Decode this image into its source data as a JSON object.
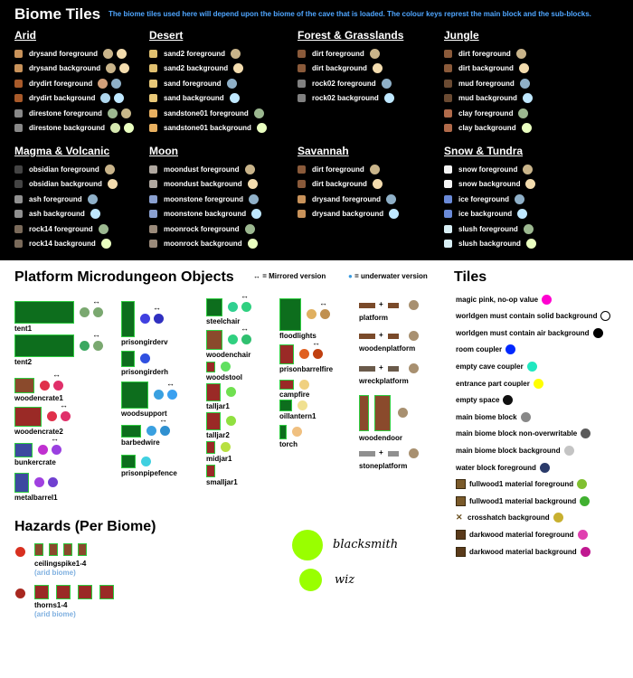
{
  "header": {
    "title": "Biome Tiles",
    "description": "The biome tiles used here will depend upon the biome of the cave that is loaded. The colour keys represt the main block and the sub-blocks."
  },
  "biomes": [
    {
      "name": "Arid",
      "rows": [
        {
          "label": "drysand foreground",
          "icon": "#c8925a",
          "dots": [
            "#c9b48a",
            "#f3dcae"
          ]
        },
        {
          "label": "drysand background",
          "icon": "#c8925a",
          "dots": [
            "#c9b48a",
            "#f3dcae"
          ]
        },
        {
          "label": "drydirt foreground",
          "icon": "#a85a2a",
          "dots": [
            "#d2a07a",
            "#8fb0c8"
          ]
        },
        {
          "label": "drydirt background",
          "icon": "#a85a2a",
          "dots": [
            "#aed6ee",
            "#bfe8ff"
          ]
        },
        {
          "label": "direstone foreground",
          "icon": "#888888",
          "dots": [
            "#9cb890",
            "#c8b88a"
          ]
        },
        {
          "label": "direstone background",
          "icon": "#888888",
          "dots": [
            "#d6e8b0",
            "#eaffc0"
          ]
        }
      ]
    },
    {
      "name": "Desert",
      "rows": [
        {
          "label": "sand2 foreground",
          "icon": "#e0c070",
          "dots": [
            "#c9b48a"
          ]
        },
        {
          "label": "sand2 background",
          "icon": "#e0c070",
          "dots": [
            "#f3dcae"
          ]
        },
        {
          "label": "sand foreground",
          "icon": "#e8c878",
          "dots": [
            "#8fb0c8"
          ]
        },
        {
          "label": "sand background",
          "icon": "#e8c878",
          "dots": [
            "#bfe8ff"
          ]
        },
        {
          "label": "sandstone01 foreground",
          "icon": "#e8b060",
          "dots": [
            "#9cb890"
          ]
        },
        {
          "label": "sandstone01 background",
          "icon": "#e8b060",
          "dots": [
            "#eaffc0"
          ]
        }
      ]
    },
    {
      "name": "Forest & Grasslands",
      "rows": [
        {
          "label": "dirt foreground",
          "icon": "#8a5a3a",
          "dots": [
            "#c9b48a"
          ]
        },
        {
          "label": "dirt background",
          "icon": "#8a5a3a",
          "dots": [
            "#f3dcae"
          ]
        },
        {
          "label": "rock02 foreground",
          "icon": "#808080",
          "dots": [
            "#8fb0c8"
          ]
        },
        {
          "label": "rock02 background",
          "icon": "#808080",
          "dots": [
            "#bfe8ff"
          ]
        }
      ]
    },
    {
      "name": "Jungle",
      "rows": [
        {
          "label": "dirt foreground",
          "icon": "#8a5a3a",
          "dots": [
            "#c9b48a"
          ]
        },
        {
          "label": "dirt background",
          "icon": "#8a5a3a",
          "dots": [
            "#f3dcae"
          ]
        },
        {
          "label": "mud foreground",
          "icon": "#6a4a32",
          "dots": [
            "#8fb0c8"
          ]
        },
        {
          "label": "mud background",
          "icon": "#6a4a32",
          "dots": [
            "#bfe8ff"
          ]
        },
        {
          "label": "clay foreground",
          "icon": "#b06a4a",
          "dots": [
            "#9cb890"
          ]
        },
        {
          "label": "clay background",
          "icon": "#b06a4a",
          "dots": [
            "#eaffc0"
          ]
        }
      ]
    },
    {
      "name": "Magma & Volcanic",
      "rows": [
        {
          "label": "obsidian foreground",
          "icon": "#444444",
          "dots": [
            "#c9b48a"
          ]
        },
        {
          "label": "obsidian background",
          "icon": "#444444",
          "dots": [
            "#f3dcae"
          ]
        },
        {
          "label": "ash foreground",
          "icon": "#909090",
          "dots": [
            "#8fb0c8"
          ]
        },
        {
          "label": "ash background",
          "icon": "#909090",
          "dots": [
            "#bfe8ff"
          ]
        },
        {
          "label": "rock14 foreground",
          "icon": "#7a6a5a",
          "dots": [
            "#9cb890"
          ]
        },
        {
          "label": "rock14 background",
          "icon": "#7a6a5a",
          "dots": [
            "#eaffc0"
          ]
        }
      ]
    },
    {
      "name": "Moon",
      "rows": [
        {
          "label": "moondust foreground",
          "icon": "#b0a8a0",
          "dots": [
            "#c9b48a"
          ]
        },
        {
          "label": "moondust background",
          "icon": "#b0a8a0",
          "dots": [
            "#f3dcae"
          ]
        },
        {
          "label": "moonstone foreground",
          "icon": "#8aa0d0",
          "dots": [
            "#8fb0c8"
          ]
        },
        {
          "label": "moonstone background",
          "icon": "#8aa0d0",
          "dots": [
            "#bfe8ff"
          ]
        },
        {
          "label": "moonrock foreground",
          "icon": "#9a8a7a",
          "dots": [
            "#9cb890"
          ]
        },
        {
          "label": "moonrock background",
          "icon": "#9a8a7a",
          "dots": [
            "#eaffc0"
          ]
        }
      ]
    },
    {
      "name": "Savannah",
      "rows": [
        {
          "label": "dirt foreground",
          "icon": "#8a5a3a",
          "dots": [
            "#c9b48a"
          ]
        },
        {
          "label": "dirt background",
          "icon": "#8a5a3a",
          "dots": [
            "#f3dcae"
          ]
        },
        {
          "label": "drysand foreground",
          "icon": "#c8925a",
          "dots": [
            "#8fb0c8"
          ]
        },
        {
          "label": "drysand background",
          "icon": "#c8925a",
          "dots": [
            "#bfe8ff"
          ]
        }
      ]
    },
    {
      "name": "Snow & Tundra",
      "rows": [
        {
          "label": "snow foreground",
          "icon": "#f4f4f4",
          "dots": [
            "#c9b48a"
          ]
        },
        {
          "label": "snow background",
          "icon": "#f4f4f4",
          "dots": [
            "#f3dcae"
          ]
        },
        {
          "label": "ice foreground",
          "icon": "#6a8ad8",
          "dots": [
            "#8fb0c8"
          ]
        },
        {
          "label": "ice background",
          "icon": "#6a8ad8",
          "dots": [
            "#bfe8ff"
          ]
        },
        {
          "label": "slush foreground",
          "icon": "#d8eef4",
          "dots": [
            "#9cb890"
          ]
        },
        {
          "label": "slush background",
          "icon": "#d8eef4",
          "dots": [
            "#eaffc0"
          ]
        }
      ]
    }
  ],
  "platform": {
    "title": "Platform Microdungeon Objects",
    "mirrored_legend": "= Mirrored version",
    "underwater_legend": "= underwater version",
    "objects": [
      "tent1",
      "tent2",
      "woodencrate1",
      "woodencrate2",
      "bunkercrate",
      "metalbarrel1",
      "prisongirderv",
      "prisongirderh",
      "woodsupport",
      "barbedwire",
      "prisonpipefence",
      "steelchair",
      "woodenchair",
      "woodstool",
      "talljar1",
      "talljar2",
      "midjar1",
      "smalljar1",
      "floodlights",
      "prisonbarrelfire",
      "campfire",
      "oillantern1",
      "torch",
      "platform",
      "woodenplatform",
      "wreckplatform",
      "woodendoor",
      "stoneplatform"
    ]
  },
  "tiles": {
    "title": "Tiles",
    "rows": [
      {
        "label": "magic pink, no-op value",
        "color": "#ff00d0",
        "icon": ""
      },
      {
        "label": "worldgen must contain solid background",
        "color": "#ffffff",
        "icon": ""
      },
      {
        "label": "worldgen must contain air background",
        "color": "#000000",
        "icon": ""
      },
      {
        "label": "room coupler",
        "color": "#0028ff",
        "icon": ""
      },
      {
        "label": "empty cave coupler",
        "color": "#20e8c0",
        "icon": ""
      },
      {
        "label": "entrance part coupler",
        "color": "#ffff00",
        "icon": ""
      },
      {
        "label": "empty space",
        "color": "#101010",
        "icon": ""
      },
      {
        "label": "main biome block",
        "color": "#888888",
        "icon": ""
      },
      {
        "label": "main biome block non-overwritable",
        "color": "#5a5a5a",
        "icon": ""
      },
      {
        "label": "main biome block background",
        "color": "#c4c4c4",
        "icon": ""
      },
      {
        "label": "water block foreground",
        "color": "#2a3a6a",
        "icon": ""
      },
      {
        "label": "fullwood1 material foreground",
        "color": "#80c030",
        "icon": "#7a5a2a"
      },
      {
        "label": "fullwood1 material background",
        "color": "#40b030",
        "icon": "#7a5a2a"
      },
      {
        "label": "crosshatch background",
        "color": "#c8b030",
        "icon": "cross"
      },
      {
        "label": "darkwood material foreground",
        "color": "#e040b0",
        "icon": "#5a3a1a"
      },
      {
        "label": "darkwood material background",
        "color": "#c01890",
        "icon": "#5a3a1a"
      }
    ]
  },
  "hazards": {
    "title": "Hazards (Per Biome)",
    "items": [
      {
        "label": "ceilingspike1-4",
        "sub": "(arid biome)",
        "color": "#d83020"
      },
      {
        "label": "thorns1-4",
        "sub": "(arid biome)",
        "color": "#a82820"
      }
    ]
  },
  "extras": [
    {
      "label": "blacksmith",
      "color": "#99ff00"
    },
    {
      "label": "wiz",
      "color": "#99ff00"
    }
  ],
  "colors": {
    "mirrored_arrow": "↔",
    "water_drop": "💧"
  }
}
